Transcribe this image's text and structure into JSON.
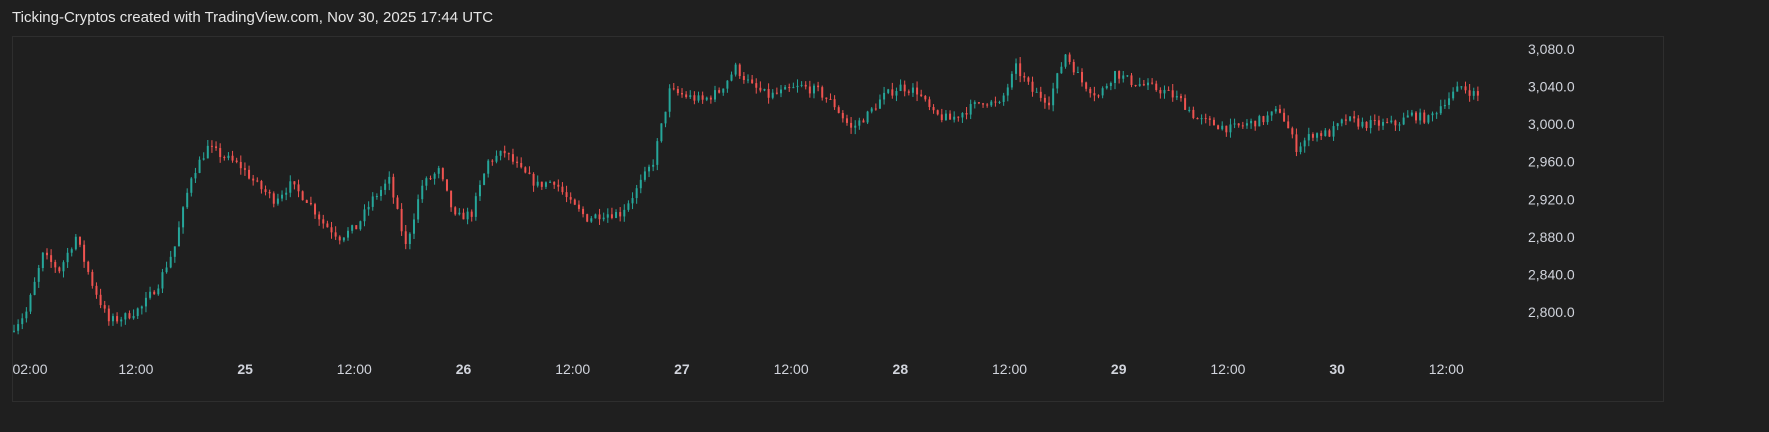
{
  "header": {
    "caption": "Ticking-Cryptos created with TradingView.com, Nov 30, 2025 17:44 UTC"
  },
  "colors": {
    "background": "#1f1f1f",
    "up": "#26a69a",
    "down": "#ef5350",
    "text": "#d1d4dc"
  },
  "chart_data": {
    "type": "candlestick",
    "title": "",
    "xlabel": "",
    "ylabel": "",
    "ylim": [
      2760,
      3100
    ],
    "y_ticks": [
      "3,080.0",
      "3,040.0",
      "3,000.0",
      "2,960.0",
      "2,920.0",
      "2,880.0",
      "2,840.0",
      "2,800.0"
    ],
    "y_tick_values": [
      3080,
      3040,
      3000,
      2960,
      2920,
      2880,
      2840,
      2800
    ],
    "x_ticks": [
      {
        "label": "02:00",
        "bold": false
      },
      {
        "label": "12:00",
        "bold": false
      },
      {
        "label": "25",
        "bold": true
      },
      {
        "label": "12:00",
        "bold": false
      },
      {
        "label": "26",
        "bold": true
      },
      {
        "label": "12:00",
        "bold": false
      },
      {
        "label": "27",
        "bold": true
      },
      {
        "label": "12:00",
        "bold": false
      },
      {
        "label": "28",
        "bold": true
      },
      {
        "label": "12:00",
        "bold": false
      },
      {
        "label": "29",
        "bold": true
      },
      {
        "label": "12:00",
        "bold": false
      },
      {
        "label": "30",
        "bold": true
      },
      {
        "label": "12:00",
        "bold": false
      }
    ],
    "series": [
      {
        "values": [
          2780,
          2800,
          2860,
          2845,
          2880,
          2830,
          2790,
          2795,
          2805,
          2830,
          2870,
          2945,
          2975,
          2965,
          2955,
          2935,
          2920,
          2935,
          2920,
          2895,
          2880,
          2890,
          2920,
          2940,
          2870,
          2935,
          2950,
          2900,
          2905,
          2960,
          2970,
          2950,
          2935,
          2940,
          2915,
          2900,
          2905,
          2905,
          2930,
          2960,
          3035,
          3030,
          3025,
          3035,
          3060,
          3040,
          3030,
          3035,
          3040,
          3035,
          3020,
          2995,
          3010,
          3030,
          3040,
          3035,
          3010,
          3005,
          3015,
          3025,
          3020,
          3060,
          3035,
          3025,
          3075,
          3045,
          3030,
          3055,
          3045,
          3040,
          3035,
          3025,
          3005,
          3000,
          2995,
          3000,
          3005,
          3015,
          2975,
          2990,
          2990,
          3005,
          3000,
          3000,
          3000,
          3010,
          3005,
          3025,
          3040,
          3030
        ]
      }
    ]
  }
}
